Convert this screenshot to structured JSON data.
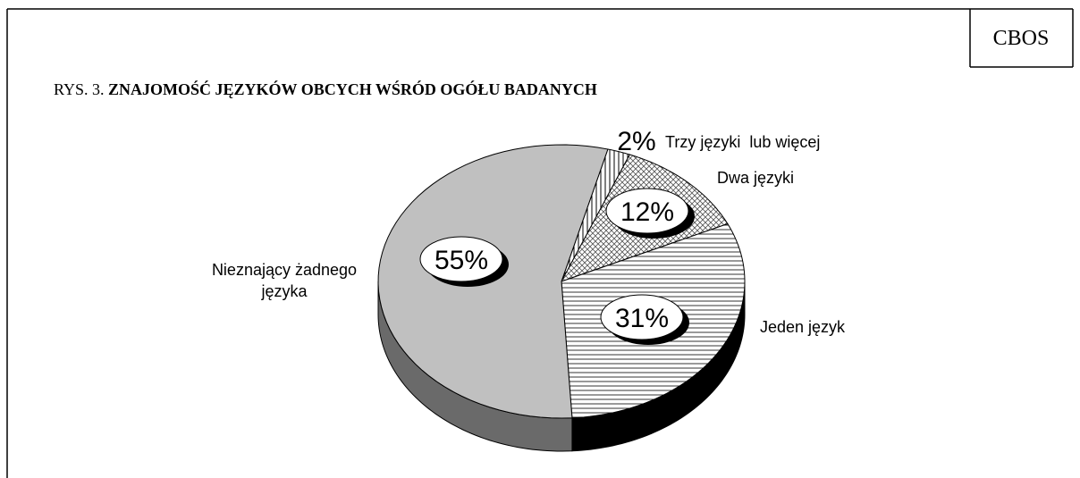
{
  "chart_data": {
    "type": "pie3d",
    "source_label": "CBOS",
    "figure_label": "RYS. 3.",
    "title": "ZNAJOMOŚĆ JĘZYKÓW OBCYCH WŚRÓD OGÓŁU BADANYCH",
    "categories": [
      "Trzy języki  lub więcej",
      "Dwa języki",
      "Jeden język",
      "Nieznający żadnego języka"
    ],
    "values": [
      2,
      12,
      31,
      55
    ],
    "value_labels": [
      "2%",
      "12%",
      "31%",
      "55%"
    ]
  }
}
